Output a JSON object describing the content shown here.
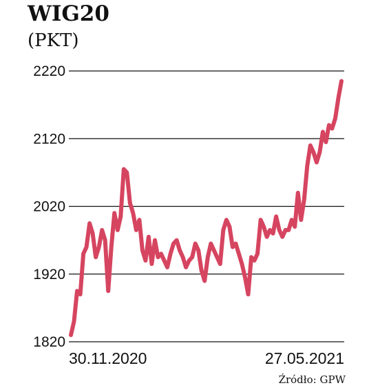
{
  "chart_data": {
    "type": "line",
    "title": "WIG20",
    "subtitle": "(PKT)",
    "source": "Źródło: GPW",
    "ylim": [
      1820,
      2220
    ],
    "y_ticks": [
      2220,
      2120,
      2020,
      1920,
      1820
    ],
    "x_tick_labels": [
      "30.11.2020",
      "27.05.2021"
    ],
    "grid": true,
    "line_color": "#d64560",
    "grid_color": "#111111",
    "series": [
      {
        "values": [
          1830,
          1850,
          1895,
          1890,
          1950,
          1960,
          1995,
          1980,
          1945,
          1960,
          1985,
          1970,
          1895,
          1960,
          2010,
          1985,
          2005,
          2075,
          2070,
          2025,
          2010,
          1985,
          2000,
          1955,
          1940,
          1975,
          1935,
          1970,
          1945,
          1950,
          1940,
          1930,
          1950,
          1965,
          1970,
          1955,
          1945,
          1930,
          1940,
          1945,
          1965,
          1955,
          1925,
          1910,
          1945,
          1965,
          1955,
          1945,
          1935,
          1985,
          2000,
          1990,
          1960,
          1965,
          1950,
          1935,
          1915,
          1890,
          1945,
          1940,
          1950,
          2000,
          1990,
          1975,
          1985,
          1980,
          2005,
          1985,
          1975,
          1985,
          1985,
          2000,
          1990,
          2040,
          2000,
          2030,
          2080,
          2110,
          2100,
          2085,
          2100,
          2130,
          2115,
          2140,
          2135,
          2150,
          2180,
          2205
        ]
      }
    ]
  }
}
